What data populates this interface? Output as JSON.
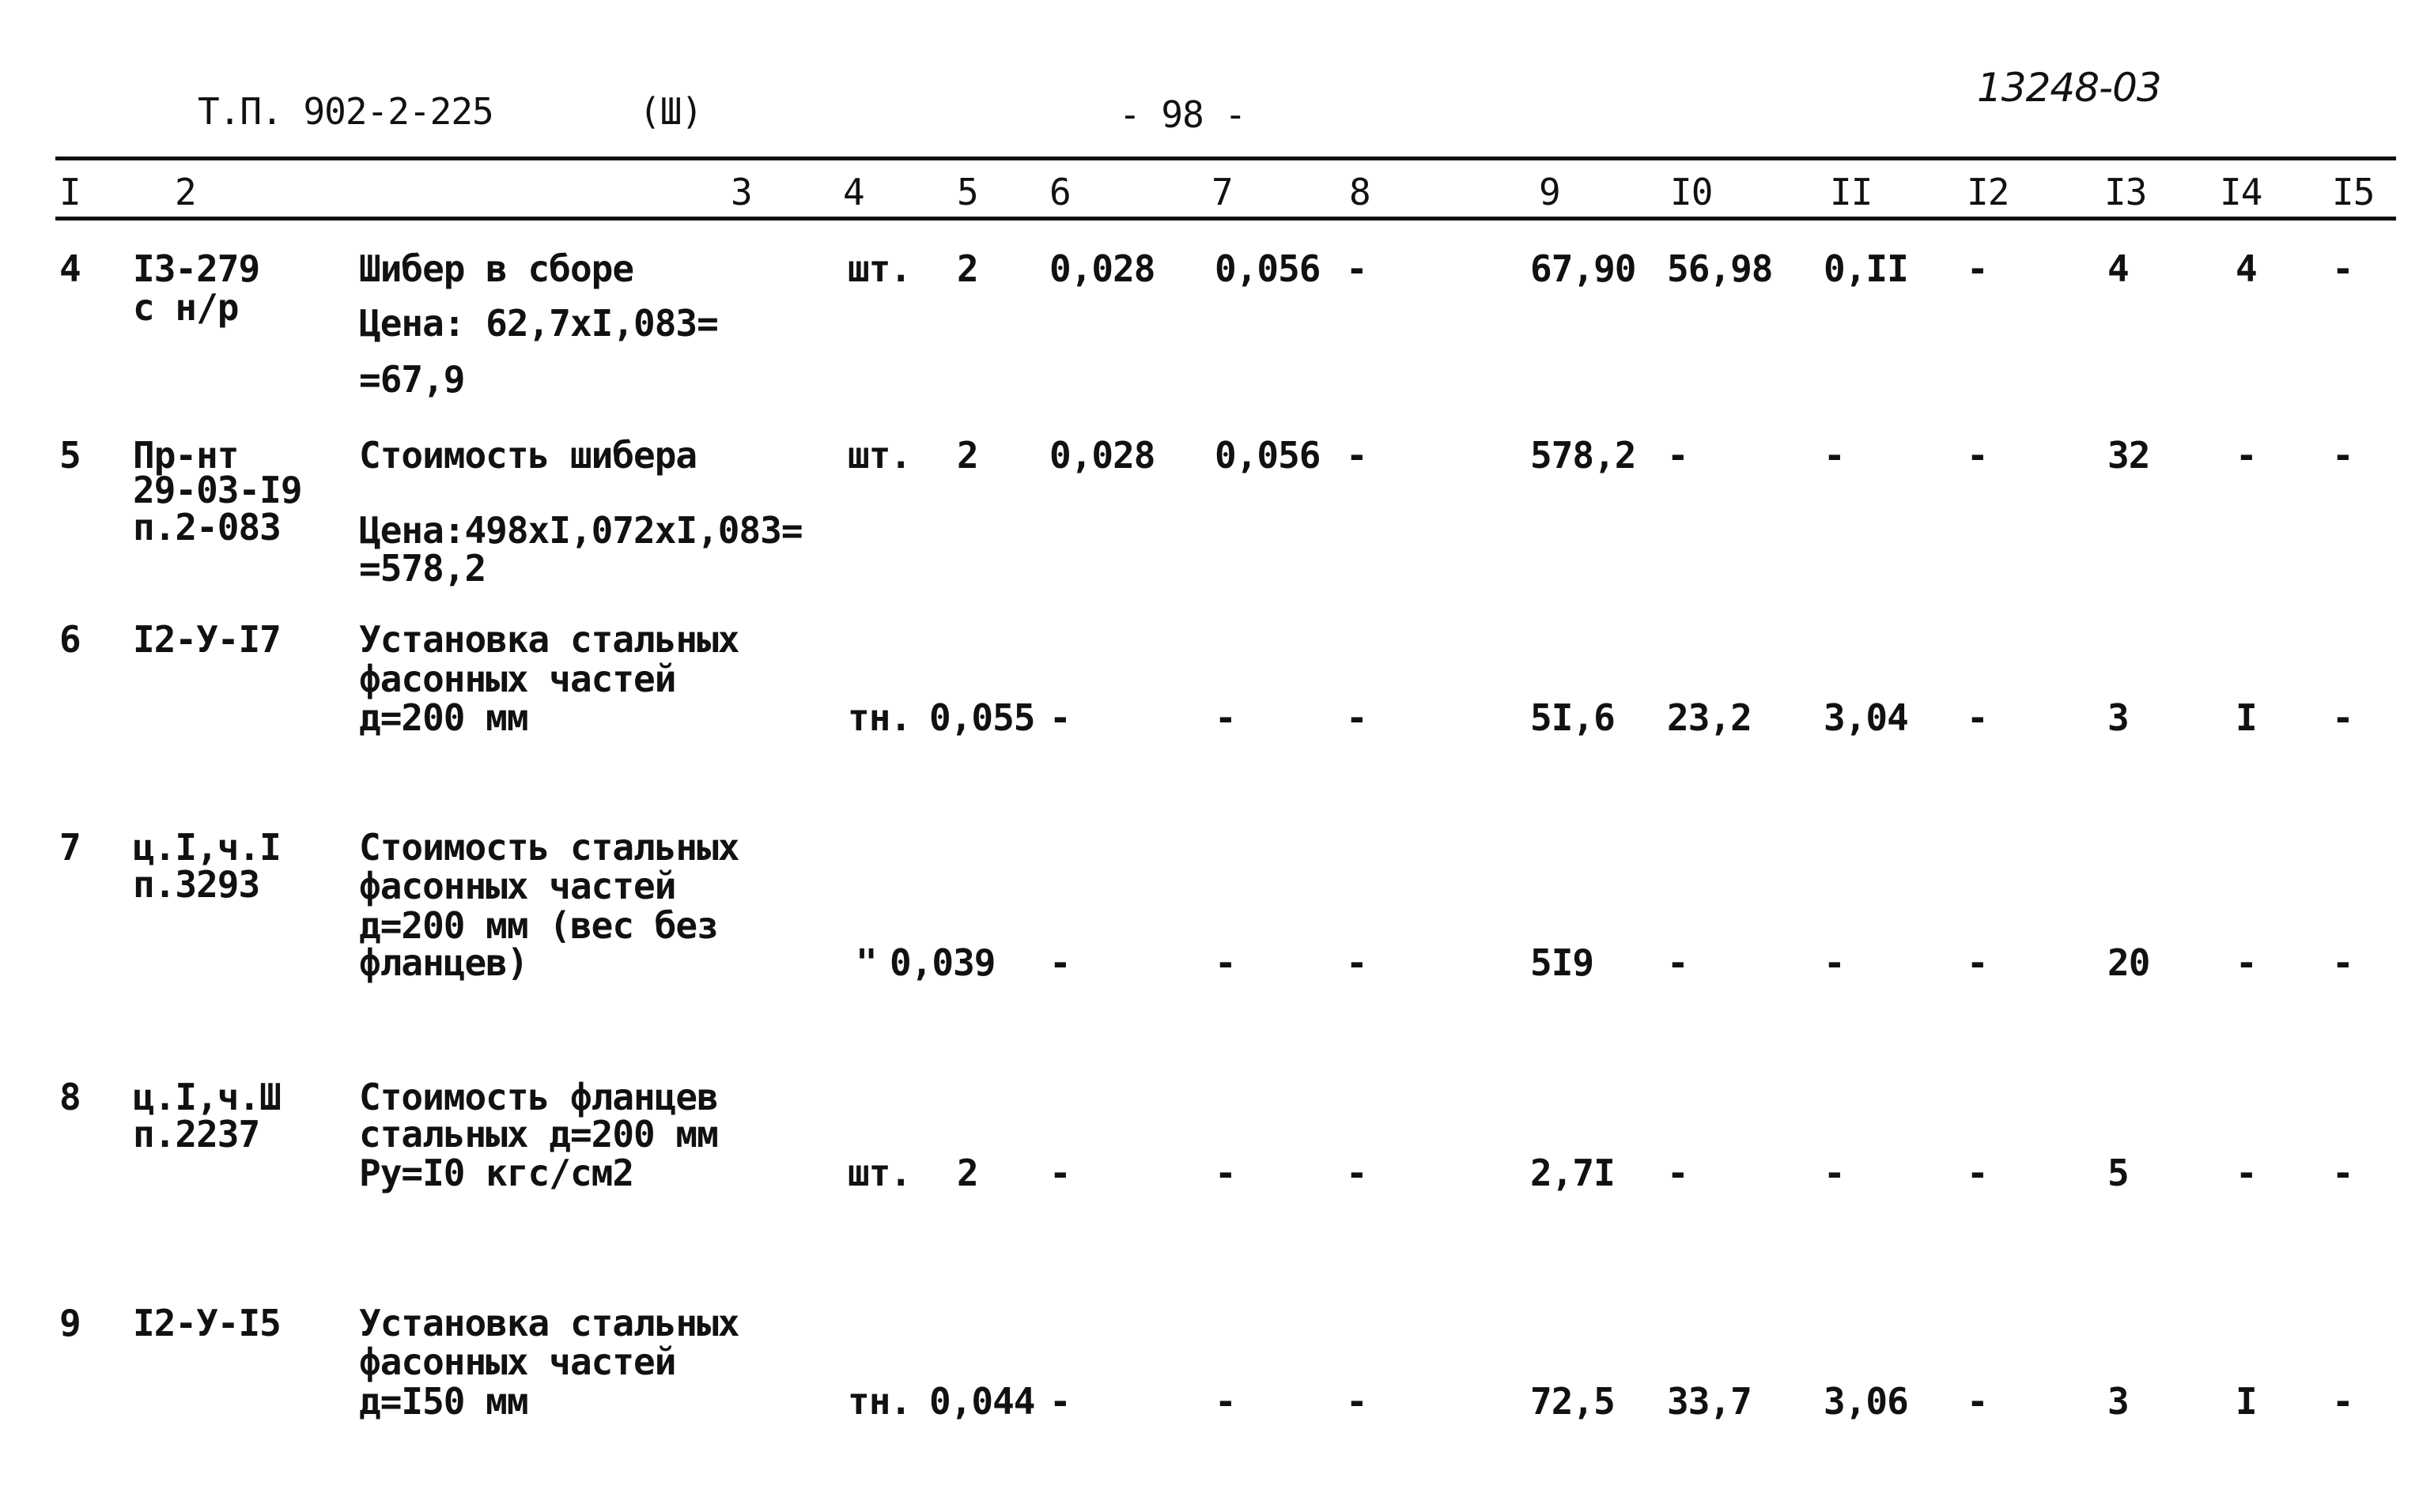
{
  "header": {
    "project": "Т.П. 902-2-225",
    "part": "(Ш)",
    "page": "- 98 -",
    "doc_number": "13248-03"
  },
  "columns": [
    "I",
    "2",
    "3",
    "4",
    "5",
    "6",
    "7",
    "8",
    "9",
    "I0",
    "II",
    "I2",
    "I3",
    "I4",
    "I5"
  ],
  "rows": [
    {
      "num": "4",
      "code": [
        "I3-279",
        "с н/р"
      ],
      "desc": [
        "Шибер в сборе",
        "Цена: 62,7хI,083=",
        "=67,9"
      ],
      "unit": "шт.",
      "qty": "2",
      "c6": "0,028",
      "c7": "0,056",
      "c8": "-",
      "c9": "67,90",
      "c10": "56,98",
      "c11": "0,II",
      "c12": "-",
      "c13": "4",
      "c14": "4",
      "c15": "-"
    },
    {
      "num": "5",
      "code": [
        "Пр-нт",
        "29-03-I9",
        "п.2-083"
      ],
      "desc": [
        "Стоимость шибера",
        "Цена:498хI,072хI,083=",
        "=578,2"
      ],
      "unit": "шт.",
      "qty": "2",
      "c6": "0,028",
      "c7": "0,056",
      "c8": "-",
      "c9": "578,2",
      "c10": "-",
      "c11": "-",
      "c12": "-",
      "c13": "32",
      "c14": "-",
      "c15": "-"
    },
    {
      "num": "6",
      "code": [
        "I2-У-I7"
      ],
      "desc": [
        "Установка стальных",
        "фасонных частей",
        "д=200 мм"
      ],
      "unit": "тн.",
      "qty": "0,055",
      "c6": "-",
      "c7": "-",
      "c8": "-",
      "c9": "5I,6",
      "c10": "23,2",
      "c11": "3,04",
      "c12": "-",
      "c13": "3",
      "c14": "I",
      "c15": "-"
    },
    {
      "num": "7",
      "code": [
        "ц.I,ч.I",
        "п.3293"
      ],
      "desc": [
        "Стоимость стальных",
        "фасонных частей",
        "д=200 мм (вес без",
        "фланцев)"
      ],
      "unit": "\"",
      "qty": "0,039",
      "c6": "-",
      "c7": "-",
      "c8": "-",
      "c9": "5I9",
      "c10": "-",
      "c11": "-",
      "c12": "-",
      "c13": "20",
      "c14": "-",
      "c15": "-"
    },
    {
      "num": "8",
      "code": [
        "ц.I,ч.Ш",
        "п.2237"
      ],
      "desc": [
        "Стоимость фланцев",
        "стальных д=200 мм",
        "Ру=I0 кгс/см2"
      ],
      "unit": "шт.",
      "qty": "2",
      "c6": "-",
      "c7": "-",
      "c8": "-",
      "c9": "2,7I",
      "c10": "-",
      "c11": "-",
      "c12": "-",
      "c13": "5",
      "c14": "-",
      "c15": "-"
    },
    {
      "num": "9",
      "code": [
        "I2-У-I5"
      ],
      "desc": [
        "Установка стальных",
        "фасонных частей",
        "д=I50 мм"
      ],
      "unit": "тн.",
      "qty": "0,044",
      "c6": "-",
      "c7": "-",
      "c8": "-",
      "c9": "72,5",
      "c10": "33,7",
      "c11": "3,06",
      "c12": "-",
      "c13": "3",
      "c14": "I",
      "c15": "-"
    }
  ]
}
